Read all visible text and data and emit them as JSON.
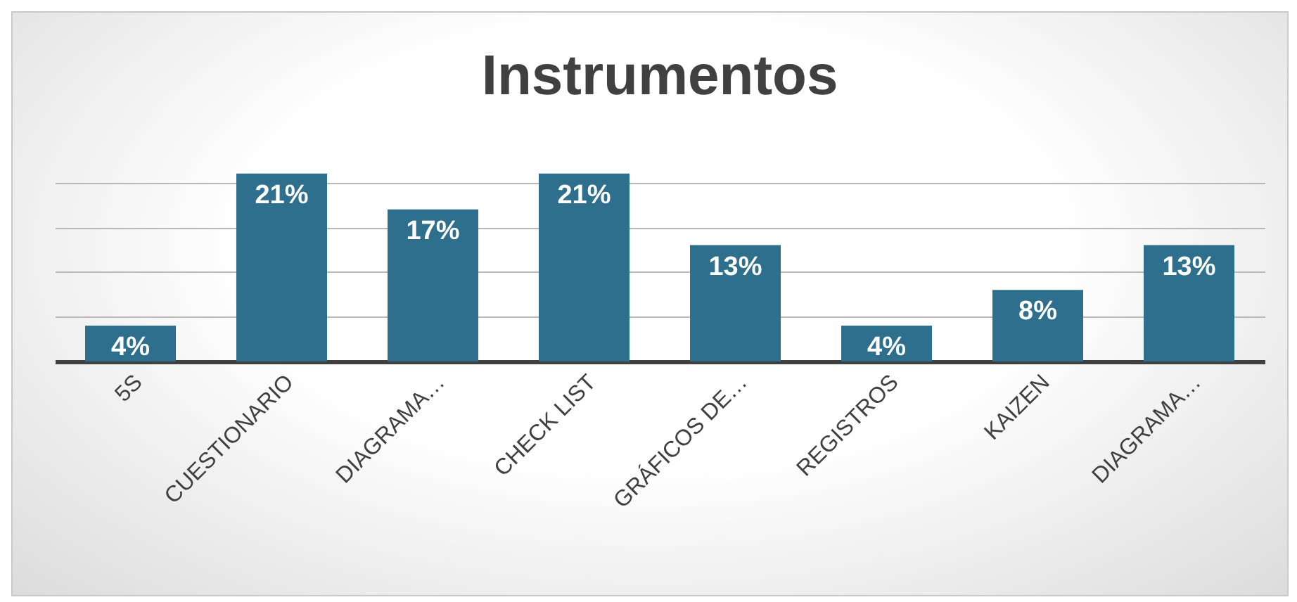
{
  "chart_data": {
    "type": "bar",
    "title": "Instrumentos",
    "categories": [
      "5S",
      "CUESTIONARIO",
      "DIAGRAMA…",
      "CHECK LIST",
      "GRÁFICOS DE…",
      "REGISTROS",
      "KAIZEN",
      "DIAGRAMA…"
    ],
    "values": [
      4,
      21,
      17,
      21,
      13,
      4,
      8,
      13
    ],
    "value_labels": [
      "4%",
      "21%",
      "17%",
      "21%",
      "13%",
      "4%",
      "8%",
      "13%"
    ],
    "color": "#2e6f8e",
    "grid": "y",
    "tick_labels": "x"
  }
}
